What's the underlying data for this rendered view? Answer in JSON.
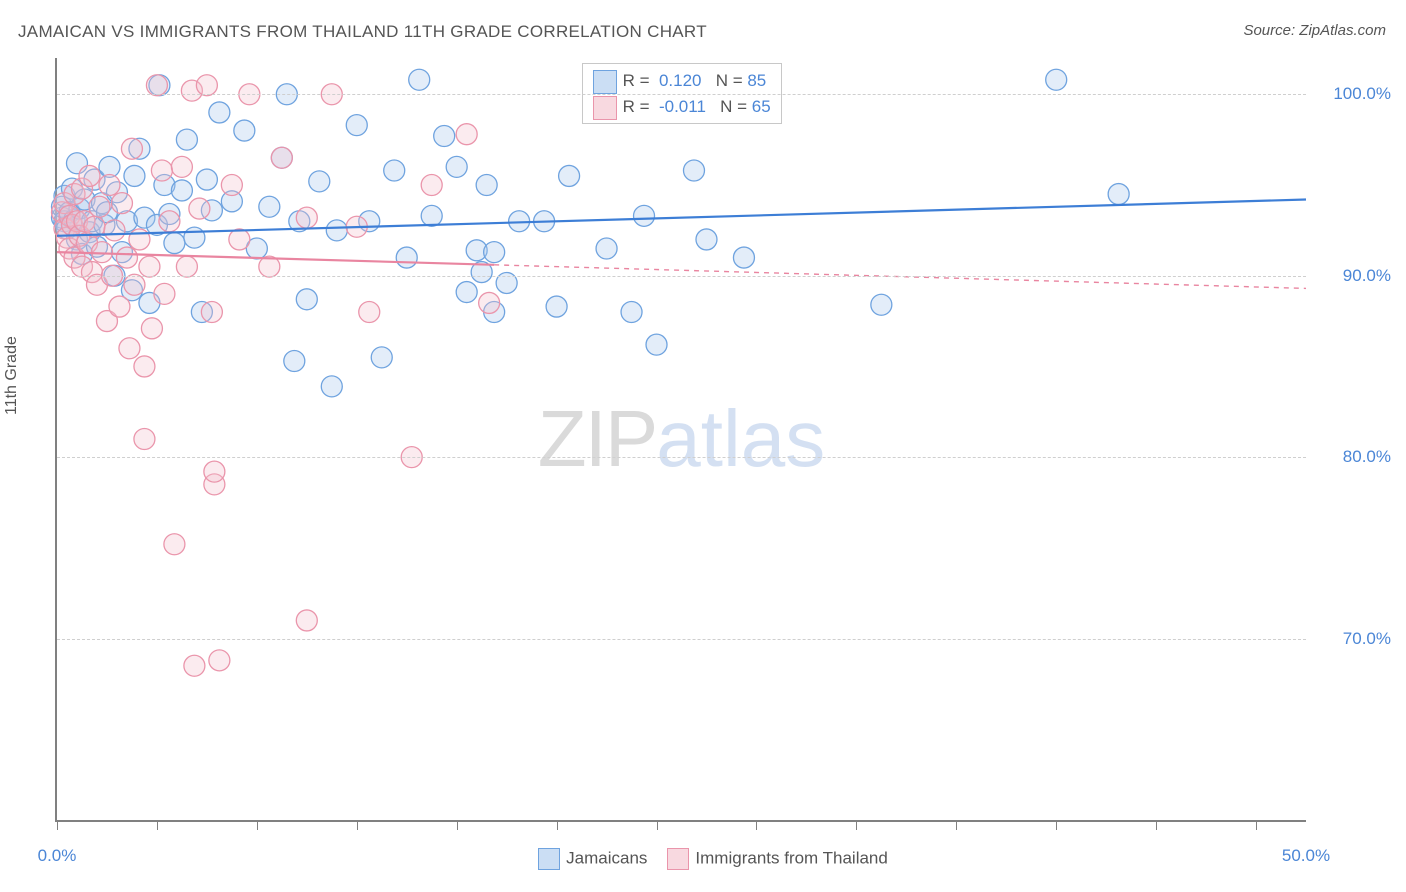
{
  "title": "JAMAICAN VS IMMIGRANTS FROM THAILAND 11TH GRADE CORRELATION CHART",
  "source": "Source: ZipAtlas.com",
  "y_axis_label": "11th Grade",
  "watermark": {
    "part1": "ZIP",
    "part2": "atlas"
  },
  "chart": {
    "type": "scatter",
    "background": "#ffffff",
    "grid_color": "#cfcfcf",
    "axis_color": "#808080",
    "xlim": [
      0,
      50
    ],
    "ylim": [
      60,
      102
    ],
    "x_ticks": [
      0,
      4,
      8,
      12,
      16,
      20,
      24,
      28,
      32,
      36,
      40,
      44,
      48
    ],
    "x_tick_labels": {
      "0": "0.0%",
      "50": "50.0%"
    },
    "y_gridlines": [
      70,
      80,
      90,
      100
    ],
    "y_tick_labels": {
      "70": "70.0%",
      "80": "80.0%",
      "90": "90.0%",
      "100": "100.0%"
    },
    "marker_radius": 10.5,
    "marker_fill_opacity": 0.32,
    "marker_stroke_width": 1.3,
    "line_width": 2.2,
    "series": [
      {
        "name": "Jamaicans",
        "color_fill": "#a9c8ec",
        "color_stroke": "#6fa3df",
        "line_color": "#3d7ed6",
        "line_dash_extend": false,
        "R": "0.120",
        "N": "85",
        "trend": {
          "x1": 0,
          "y1": 92.2,
          "x2": 50,
          "y2": 94.2
        },
        "points": [
          [
            0.2,
            93.2
          ],
          [
            0.2,
            93.8
          ],
          [
            0.3,
            93.0
          ],
          [
            0.3,
            94.4
          ],
          [
            0.4,
            92.6
          ],
          [
            0.5,
            93.5
          ],
          [
            0.6,
            92.8
          ],
          [
            0.6,
            94.8
          ],
          [
            0.7,
            93.1
          ],
          [
            0.8,
            96.2
          ],
          [
            0.8,
            92.0
          ],
          [
            0.9,
            93.7
          ],
          [
            1.0,
            91.2
          ],
          [
            1.1,
            94.2
          ],
          [
            1.3,
            92.4
          ],
          [
            1.4,
            93.0
          ],
          [
            1.5,
            95.3
          ],
          [
            1.6,
            91.6
          ],
          [
            1.8,
            94.0
          ],
          [
            1.9,
            92.8
          ],
          [
            2.0,
            93.5
          ],
          [
            2.1,
            96.0
          ],
          [
            2.3,
            90.0
          ],
          [
            2.4,
            94.6
          ],
          [
            2.6,
            91.3
          ],
          [
            2.8,
            93.0
          ],
          [
            3.0,
            89.2
          ],
          [
            3.1,
            95.5
          ],
          [
            3.3,
            97.0
          ],
          [
            3.5,
            93.2
          ],
          [
            3.7,
            88.5
          ],
          [
            4.0,
            92.8
          ],
          [
            4.1,
            100.5
          ],
          [
            4.3,
            95.0
          ],
          [
            4.5,
            93.4
          ],
          [
            4.7,
            91.8
          ],
          [
            5.0,
            94.7
          ],
          [
            5.2,
            97.5
          ],
          [
            5.5,
            92.1
          ],
          [
            5.8,
            88.0
          ],
          [
            6.0,
            95.3
          ],
          [
            6.2,
            93.6
          ],
          [
            6.5,
            99.0
          ],
          [
            7.0,
            94.1
          ],
          [
            7.5,
            98.0
          ],
          [
            8.0,
            91.5
          ],
          [
            8.5,
            93.8
          ],
          [
            9.0,
            96.5
          ],
          [
            9.2,
            100.0
          ],
          [
            9.5,
            85.3
          ],
          [
            9.7,
            93.0
          ],
          [
            10.0,
            88.7
          ],
          [
            10.5,
            95.2
          ],
          [
            11.0,
            83.9
          ],
          [
            11.2,
            92.5
          ],
          [
            12.0,
            98.3
          ],
          [
            12.5,
            93.0
          ],
          [
            13.0,
            85.5
          ],
          [
            13.5,
            95.8
          ],
          [
            14.0,
            91.0
          ],
          [
            14.5,
            100.8
          ],
          [
            15.0,
            93.3
          ],
          [
            15.5,
            97.7
          ],
          [
            16.0,
            96.0
          ],
          [
            16.4,
            89.1
          ],
          [
            16.8,
            91.4
          ],
          [
            17.0,
            90.2
          ],
          [
            17.2,
            95.0
          ],
          [
            17.5,
            88.0
          ],
          [
            17.5,
            91.3
          ],
          [
            18.0,
            89.6
          ],
          [
            18.5,
            93.0
          ],
          [
            19.5,
            93.0
          ],
          [
            20.0,
            88.3
          ],
          [
            20.5,
            95.5
          ],
          [
            22.0,
            91.5
          ],
          [
            23.0,
            88.0
          ],
          [
            23.5,
            93.3
          ],
          [
            24.0,
            86.2
          ],
          [
            25.5,
            95.8
          ],
          [
            26.0,
            92.0
          ],
          [
            27.5,
            91.0
          ],
          [
            33.0,
            88.4
          ],
          [
            40.0,
            100.8
          ],
          [
            42.5,
            94.5
          ]
        ]
      },
      {
        "name": "Immigrants from Thailand",
        "color_fill": "#f4c0cc",
        "color_stroke": "#ea95ab",
        "line_color": "#e985a0",
        "line_dash_extend": true,
        "R": "-0.011",
        "N": "65",
        "trend": {
          "x1": 0,
          "y1": 91.3,
          "x2": 17.5,
          "y2": 90.6
        },
        "trend_ext": {
          "x1": 17.5,
          "y1": 90.6,
          "x2": 50,
          "y2": 89.3
        },
        "points": [
          [
            0.2,
            93.5
          ],
          [
            0.3,
            92.6
          ],
          [
            0.3,
            94.0
          ],
          [
            0.4,
            92.1
          ],
          [
            0.5,
            93.3
          ],
          [
            0.5,
            91.5
          ],
          [
            0.6,
            92.8
          ],
          [
            0.7,
            94.5
          ],
          [
            0.7,
            91.0
          ],
          [
            0.8,
            93.0
          ],
          [
            0.9,
            92.2
          ],
          [
            1.0,
            94.8
          ],
          [
            1.0,
            90.5
          ],
          [
            1.1,
            93.0
          ],
          [
            1.2,
            91.8
          ],
          [
            1.3,
            95.5
          ],
          [
            1.4,
            90.2
          ],
          [
            1.5,
            92.7
          ],
          [
            1.6,
            89.5
          ],
          [
            1.7,
            93.8
          ],
          [
            1.8,
            91.3
          ],
          [
            2.0,
            87.5
          ],
          [
            2.1,
            95.0
          ],
          [
            2.2,
            90.0
          ],
          [
            2.3,
            92.5
          ],
          [
            2.5,
            88.3
          ],
          [
            2.6,
            94.0
          ],
          [
            2.8,
            91.0
          ],
          [
            2.9,
            86.0
          ],
          [
            3.0,
            97.0
          ],
          [
            3.1,
            89.5
          ],
          [
            3.3,
            92.0
          ],
          [
            3.5,
            85.0
          ],
          [
            3.5,
            81.0
          ],
          [
            3.7,
            90.5
          ],
          [
            3.8,
            87.1
          ],
          [
            4.0,
            100.5
          ],
          [
            4.2,
            95.8
          ],
          [
            4.3,
            89.0
          ],
          [
            4.5,
            93.0
          ],
          [
            4.7,
            75.2
          ],
          [
            5.0,
            96.0
          ],
          [
            5.2,
            90.5
          ],
          [
            5.4,
            100.2
          ],
          [
            5.5,
            68.5
          ],
          [
            5.7,
            93.7
          ],
          [
            6.0,
            100.5
          ],
          [
            6.2,
            88.0
          ],
          [
            6.3,
            78.5
          ],
          [
            6.3,
            79.2
          ],
          [
            6.5,
            68.8
          ],
          [
            7.0,
            95.0
          ],
          [
            7.3,
            92.0
          ],
          [
            7.7,
            100.0
          ],
          [
            8.5,
            90.5
          ],
          [
            9.0,
            96.5
          ],
          [
            10.0,
            71.0
          ],
          [
            10.0,
            93.2
          ],
          [
            11.0,
            100.0
          ],
          [
            12.0,
            92.7
          ],
          [
            12.5,
            88.0
          ],
          [
            14.2,
            80.0
          ],
          [
            15.0,
            95.0
          ],
          [
            16.4,
            97.8
          ],
          [
            17.3,
            88.5
          ]
        ]
      }
    ]
  },
  "stats_labels": {
    "R": "R =",
    "N": "N ="
  },
  "colors": {
    "label_text": "#555555",
    "value_text": "#4b86d6"
  }
}
